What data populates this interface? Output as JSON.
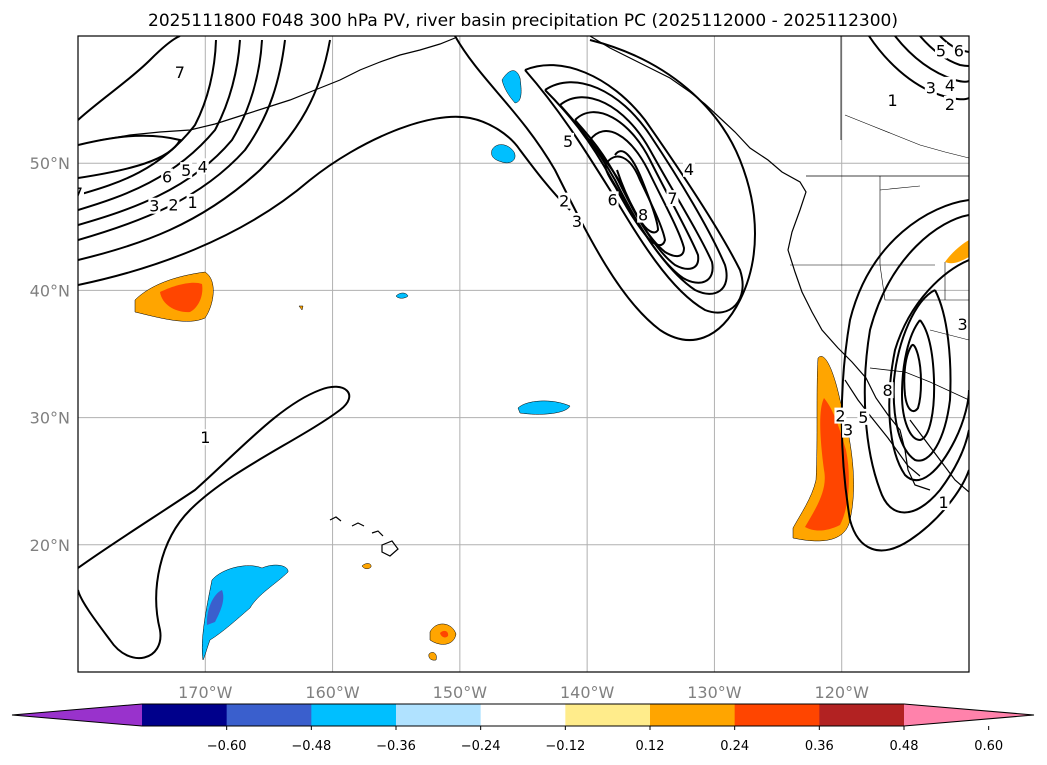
{
  "chart_data": {
    "type": "map-contour-fill",
    "title": "2025111800 F048 300 hPa PV, river basin precipitation PC (2025112000 - 2025112300)",
    "map": {
      "lon_range": [
        -180,
        -110
      ],
      "lat_range": [
        10,
        60
      ],
      "grid": true
    },
    "x_ticks": [
      {
        "value": -170,
        "label": "170°W"
      },
      {
        "value": -160,
        "label": "160°W"
      },
      {
        "value": -150,
        "label": "150°W"
      },
      {
        "value": -140,
        "label": "140°W"
      },
      {
        "value": -130,
        "label": "130°W"
      },
      {
        "value": -120,
        "label": "120°W"
      }
    ],
    "y_ticks": [
      {
        "value": 20,
        "label": "20°N"
      },
      {
        "value": 30,
        "label": "30°N"
      },
      {
        "value": 40,
        "label": "40°N"
      },
      {
        "value": 50,
        "label": "50°N"
      }
    ],
    "colorbar": {
      "levels": [
        -0.6,
        -0.48,
        -0.36,
        -0.24,
        -0.12,
        0.12,
        0.24,
        0.36,
        0.48,
        0.6
      ],
      "tick_labels": [
        "−0.60",
        "−0.48",
        "−0.36",
        "−0.24",
        "−0.12",
        "0.12",
        "0.24",
        "0.36",
        "0.48",
        "0.60"
      ],
      "colors": [
        "#9932cc",
        "#00008b",
        "#3a5fcd",
        "#00bfff",
        "#b0e2ff",
        "#ffffff",
        "#ffec8b",
        "#ffa500",
        "#ff4500",
        "#b22222",
        "#ff82ab"
      ],
      "extend": "both"
    },
    "pv_contour_labels": [
      {
        "text": "7",
        "lon": -172,
        "lat": 57
      },
      {
        "text": "6",
        "lon": -173,
        "lat": 48.8
      },
      {
        "text": "5",
        "lon": -171.5,
        "lat": 49.3
      },
      {
        "text": "4",
        "lon": -170.2,
        "lat": 49.6
      },
      {
        "text": "3",
        "lon": -174,
        "lat": 46.5
      },
      {
        "text": "2",
        "lon": -172.5,
        "lat": 46.6
      },
      {
        "text": "1",
        "lon": -171,
        "lat": 46.8
      },
      {
        "text": "7",
        "lon": -180,
        "lat": 47.5
      },
      {
        "text": "5",
        "lon": -141.5,
        "lat": 51.6
      },
      {
        "text": "2",
        "lon": -141.8,
        "lat": 46.9
      },
      {
        "text": "6",
        "lon": -138,
        "lat": 47
      },
      {
        "text": "3",
        "lon": -140.8,
        "lat": 45.3
      },
      {
        "text": "8",
        "lon": -135.6,
        "lat": 45.8
      },
      {
        "text": "7",
        "lon": -133.3,
        "lat": 47.1
      },
      {
        "text": "4",
        "lon": -132,
        "lat": 49.4
      },
      {
        "text": "1",
        "lon": -170,
        "lat": 28.3
      },
      {
        "text": "1",
        "lon": -116,
        "lat": 54.8
      },
      {
        "text": "3",
        "lon": -113,
        "lat": 55.8
      },
      {
        "text": "4",
        "lon": -111.5,
        "lat": 56
      },
      {
        "text": "2",
        "lon": -111.5,
        "lat": 54.5
      },
      {
        "text": "5",
        "lon": -112.2,
        "lat": 58.7
      },
      {
        "text": "6",
        "lon": -110.8,
        "lat": 58.7
      },
      {
        "text": "2",
        "lon": -120.1,
        "lat": 30
      },
      {
        "text": "5",
        "lon": -118.3,
        "lat": 29.9
      },
      {
        "text": "3",
        "lon": -119.5,
        "lat": 28.9
      },
      {
        "text": "3",
        "lon": -110.5,
        "lat": 37.2
      },
      {
        "text": "8",
        "lon": -116.4,
        "lat": 32
      },
      {
        "text": "1",
        "lon": -112,
        "lat": 23.2
      }
    ]
  }
}
